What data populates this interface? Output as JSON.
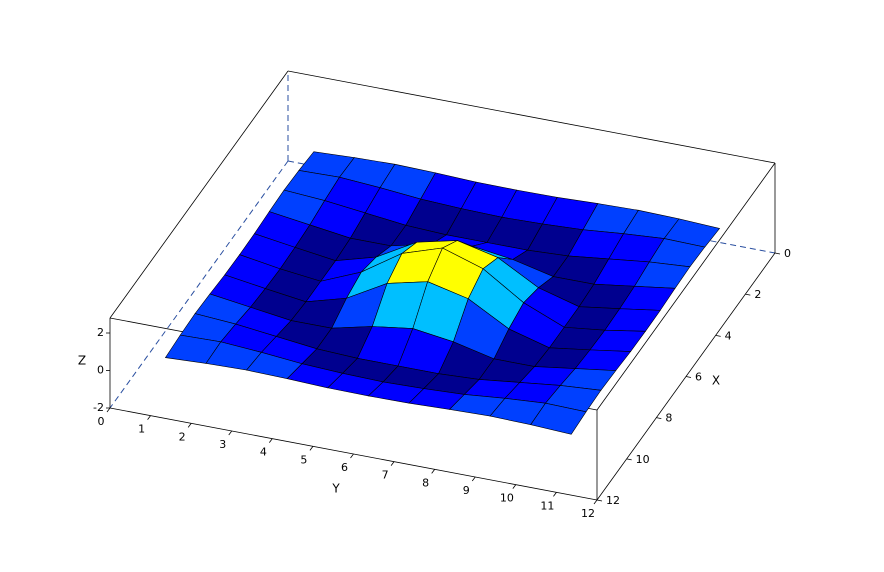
{
  "chart_data": {
    "type": "surface",
    "xlabel": "X",
    "ylabel": "Y",
    "zlabel": "Z",
    "x": [
      1,
      2,
      3,
      4,
      5,
      6,
      7,
      8,
      9,
      10,
      11
    ],
    "y": [
      1,
      2,
      3,
      4,
      5,
      6,
      7,
      8,
      9,
      10,
      11
    ],
    "z": [
      [
        0,
        0.1,
        0.15,
        0.1,
        0.02,
        0,
        0.02,
        0.1,
        0.15,
        0.1,
        0
      ],
      [
        0.1,
        0.15,
        0,
        -0.2,
        -0.3,
        -0.35,
        -0.3,
        -0.2,
        0,
        0.15,
        0.1
      ],
      [
        0.15,
        0,
        -0.25,
        -0.5,
        -0.6,
        -0.6,
        -0.6,
        -0.5,
        -0.25,
        0,
        0.15
      ],
      [
        0.1,
        -0.2,
        -0.5,
        -0.5,
        0,
        0.3,
        0,
        -0.5,
        -0.5,
        -0.2,
        0.1
      ],
      [
        0.02,
        -0.3,
        -0.6,
        0,
        1.2,
        1.7,
        1.2,
        0,
        -0.6,
        -0.3,
        0.02
      ],
      [
        0,
        -0.35,
        -0.6,
        0.3,
        1.7,
        2.4,
        1.7,
        0.3,
        -0.6,
        -0.35,
        0
      ],
      [
        0.02,
        -0.3,
        -0.6,
        0,
        1.2,
        1.7,
        1.2,
        0,
        -0.6,
        -0.3,
        0.02
      ],
      [
        0.1,
        -0.2,
        -0.5,
        -0.5,
        0,
        0.3,
        0,
        -0.5,
        -0.5,
        -0.2,
        0.1
      ],
      [
        0.15,
        0,
        -0.25,
        -0.5,
        -0.6,
        -0.6,
        -0.6,
        -0.5,
        -0.25,
        0,
        0.15
      ],
      [
        0.1,
        0.15,
        0,
        -0.2,
        -0.3,
        -0.35,
        -0.3,
        -0.2,
        0,
        0.15,
        0.1
      ],
      [
        0,
        0.1,
        0.15,
        0.1,
        0.02,
        0,
        0.02,
        0.1,
        0.15,
        0.1,
        0
      ]
    ],
    "xlim": [
      0,
      12
    ],
    "ylim": [
      0,
      12
    ],
    "zlim": [
      -2,
      2.8
    ],
    "xticks": [
      0,
      2,
      4,
      6,
      8,
      10,
      12
    ],
    "yticks": [
      0,
      1,
      2,
      3,
      4,
      5,
      6,
      7,
      8,
      9,
      10,
      11,
      12
    ],
    "zticks": [
      -2,
      0,
      2
    ],
    "colormap": [
      "#00008f",
      "#0000ff",
      "#0040ff",
      "#0080ff",
      "#00bfff",
      "#00dfff",
      "#90ff70",
      "#ffff00",
      "#ff6000",
      "#ff0000"
    ]
  }
}
